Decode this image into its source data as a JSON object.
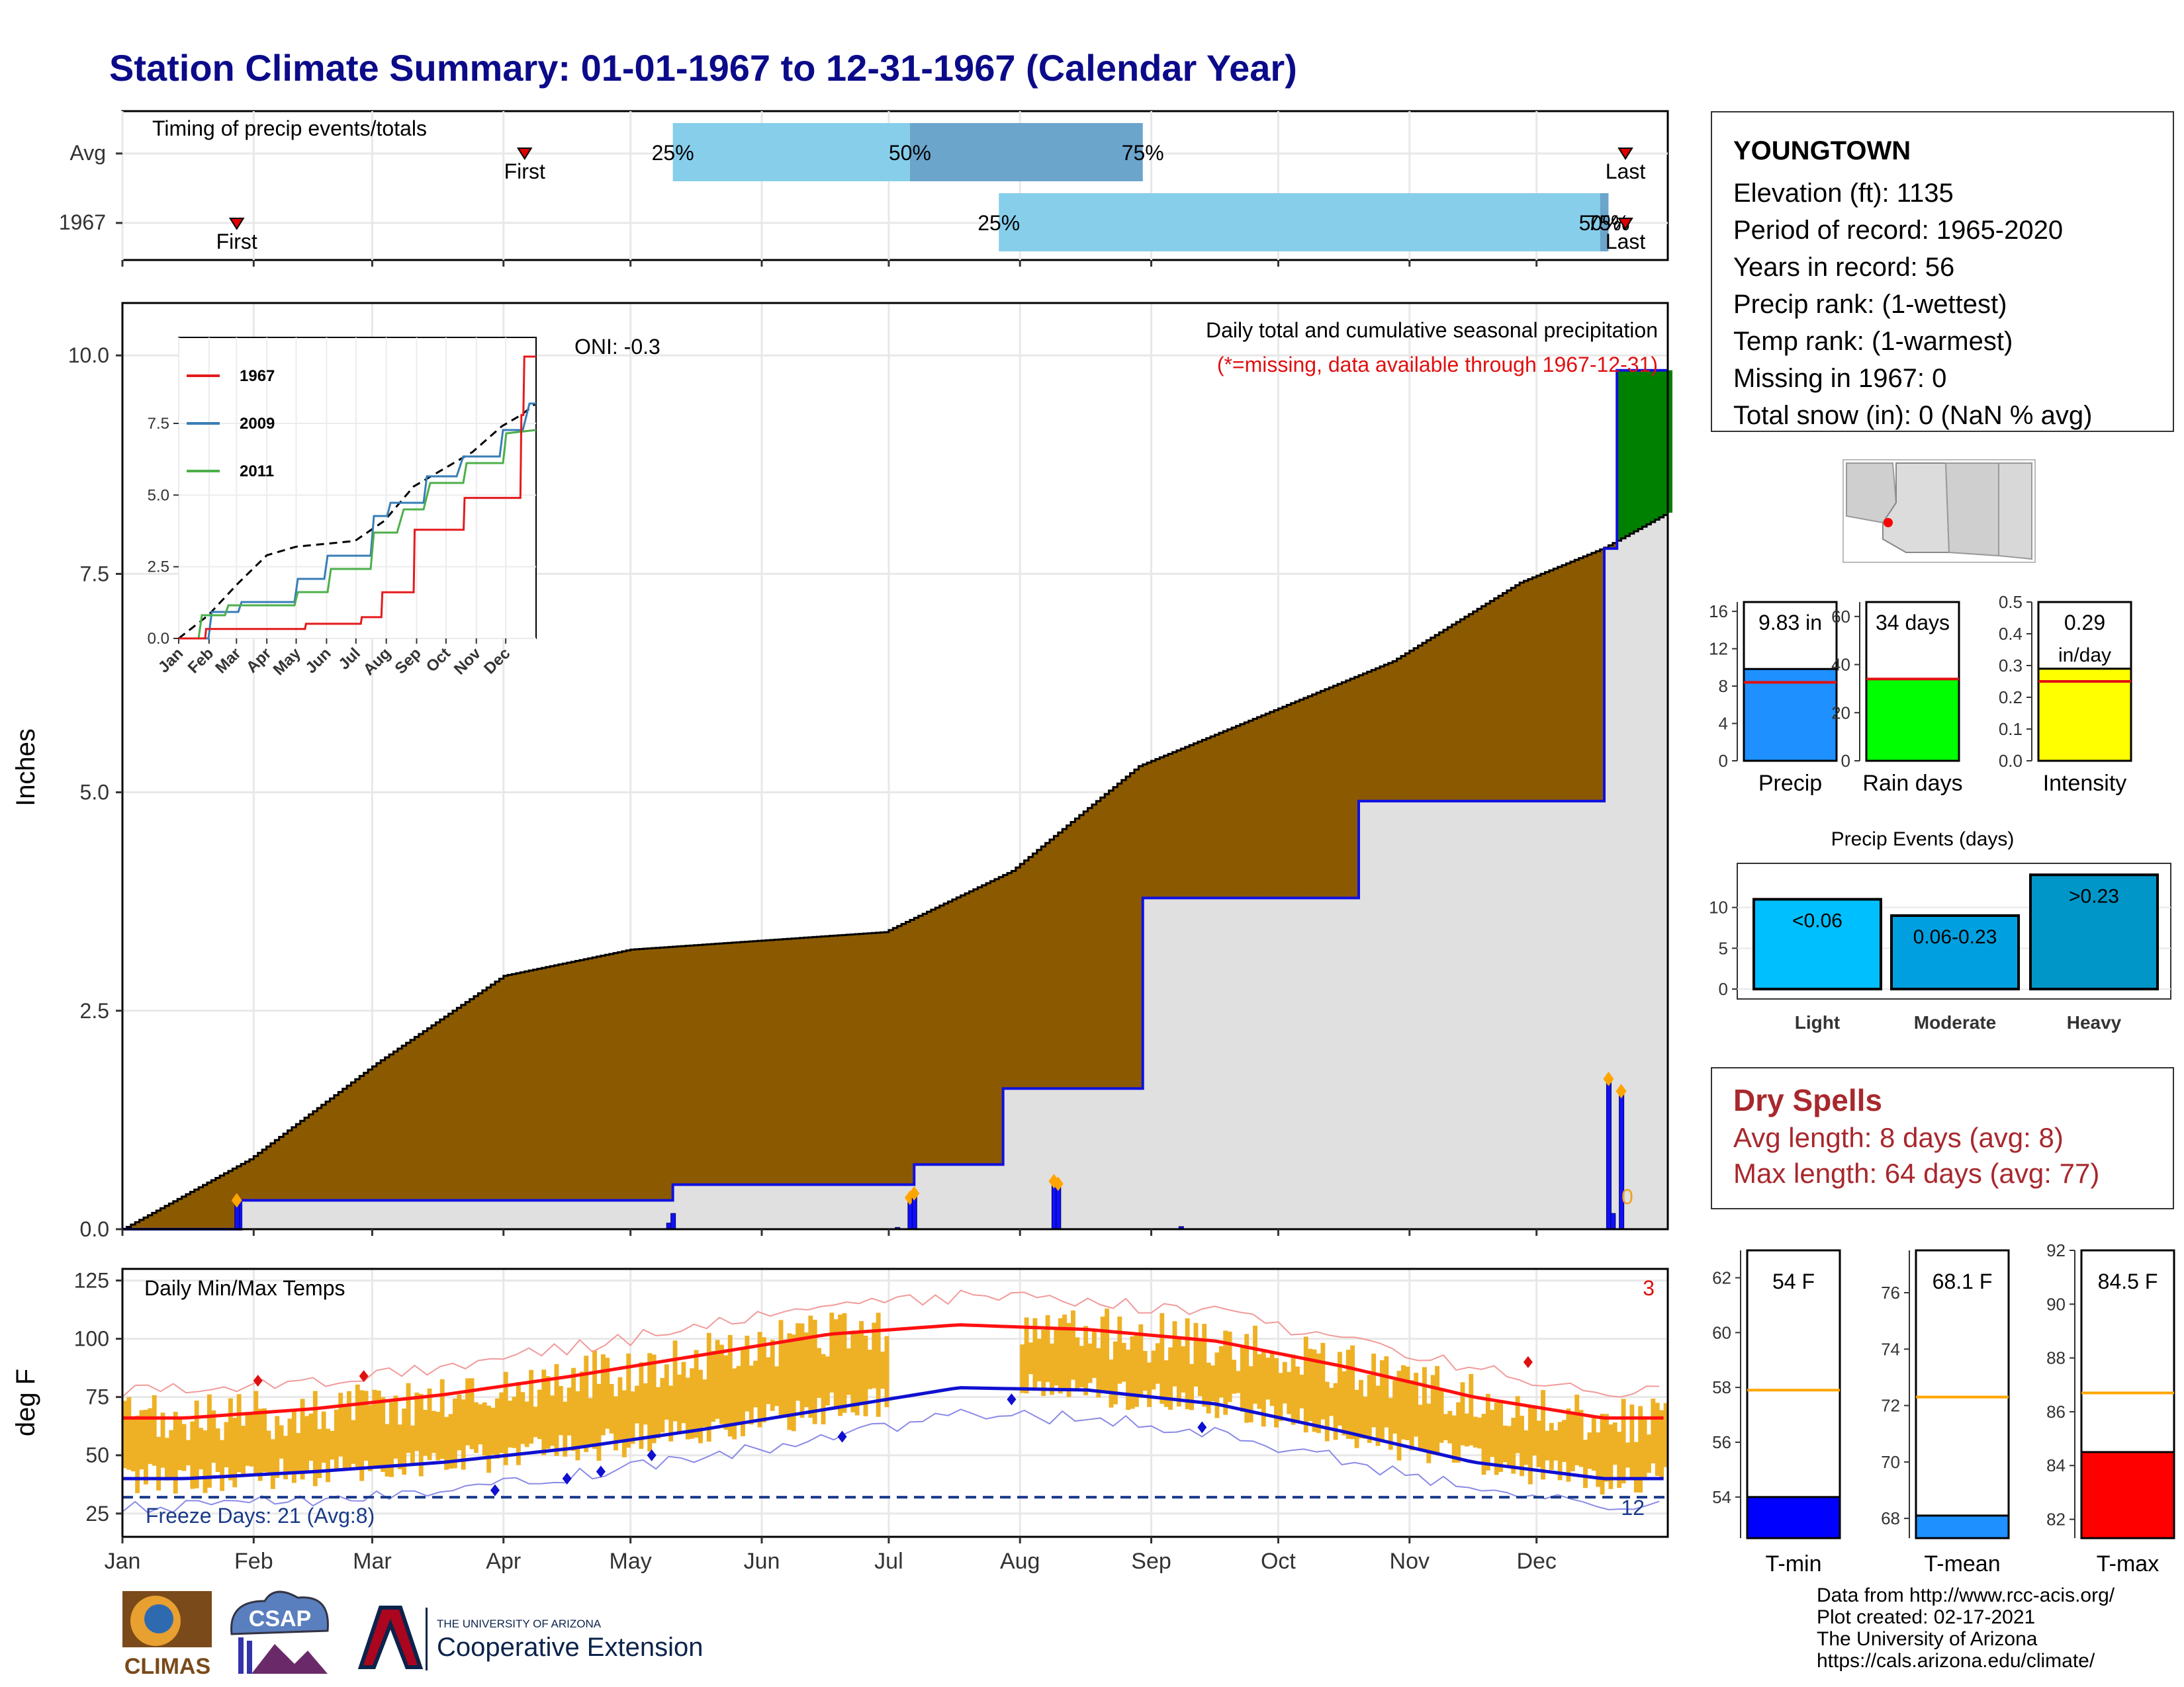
{
  "title": "Station Climate Summary: 01-01-1967 to 12-31-1967 (Calendar Year)",
  "timing_panel": {
    "title": "Timing of precip events/totals",
    "rows": [
      {
        "label": "Avg",
        "first": "First",
        "last": "Last",
        "p25": "25%",
        "p50": "50%",
        "p75": "75%",
        "first_day": 95,
        "p25_day": 130,
        "p50_day": 186,
        "p75_day": 241,
        "last_day": 355
      },
      {
        "label": "1967",
        "first": "First",
        "last": "Last",
        "p25": "25%",
        "p50": "50%",
        "p75": "75%",
        "first_day": 27,
        "p25_day": 207,
        "p50_day": 349,
        "p75_day": 351,
        "last_day": 355
      }
    ]
  },
  "precip_panel": {
    "ylabel": "Inches",
    "oni": "ONI: -0.3",
    "subtitle": "Daily total and cumulative seasonal precipitation",
    "missing_note": "(*=missing, data available through 1967-12-31)",
    "yticks": [
      "0.0",
      "2.5",
      "5.0",
      "7.5",
      "10.0"
    ],
    "label_zero": "0",
    "inset": {
      "legend": [
        "1967",
        "2009",
        "2011"
      ],
      "yticks": [
        "0.0",
        "2.5",
        "5.0",
        "7.5"
      ],
      "xticks": [
        "Jan",
        "Feb",
        "Mar",
        "Apr",
        "May",
        "Jun",
        "Jul",
        "Aug",
        "Sep",
        "Oct",
        "Nov",
        "Dec"
      ]
    }
  },
  "temp_panel": {
    "ylabel": "deg F",
    "title": "Daily Min/Max Temps",
    "record_count": "3",
    "freeze_days": "Freeze Days: 21 (Avg:8)",
    "freeze_count": "12",
    "yticks": [
      "25",
      "50",
      "75",
      "100",
      "125"
    ],
    "xticks": [
      "Jan",
      "Feb",
      "Mar",
      "Apr",
      "May",
      "Jun",
      "Jul",
      "Aug",
      "Sep",
      "Oct",
      "Nov",
      "Dec"
    ]
  },
  "station": {
    "name": "YOUNGTOWN",
    "elevation": "Elevation (ft): 1135",
    "period": "Period of record: 1965-2020",
    "years": "Years in record: 56",
    "precip_rank": "Precip rank:  (1-wettest)",
    "temp_rank": "Temp rank:  (1-warmest)",
    "missing": "Missing in 1967: 0",
    "snow": "Total snow (in): 0 (NaN % avg)"
  },
  "mini_bars": [
    {
      "name": "Precip",
      "label": "9.83 in",
      "value": 9.83,
      "avg": 8.4,
      "max": 17,
      "color": "#1e90ff",
      "yticks": [
        "0",
        "4",
        "8",
        "12",
        "16"
      ]
    },
    {
      "name": "Rain days",
      "label": "34 days",
      "value": 34,
      "avg": 34,
      "max": 66,
      "color": "#00ff00",
      "yticks": [
        "0",
        "20",
        "40",
        "60"
      ]
    },
    {
      "name": "Intensity",
      "label": "0.29",
      "label2": "in/day",
      "value": 0.29,
      "avg": 0.25,
      "max": 0.5,
      "color": "#ffff00",
      "yticks": [
        "0.0",
        "0.1",
        "0.2",
        "0.3",
        "0.4",
        "0.5"
      ]
    }
  ],
  "events_panel": {
    "title": "Precip Events (days)",
    "yticks": [
      "0",
      "5",
      "10"
    ],
    "bars": [
      {
        "name": "Light",
        "label": "<0.06",
        "value": 11,
        "color": "#00bfff"
      },
      {
        "name": "Moderate",
        "label": "0.06-0.23",
        "value": 9,
        "color": "#00a0e0"
      },
      {
        "name": "Heavy",
        "label": ">0.23",
        "value": 14,
        "color": "#0096c8"
      }
    ]
  },
  "dry_spells": {
    "title": "Dry Spells",
    "avg": "Avg length: 8 days (avg: 8)",
    "max": "Max length: 64 days (avg: 77)"
  },
  "temp_bars": [
    {
      "name": "T-min",
      "label": "54 F",
      "value": 54,
      "avg": 57.9,
      "min": 52.5,
      "max": 63,
      "color": "#0000ff",
      "yticks": [
        "54",
        "56",
        "58",
        "60",
        "62"
      ]
    },
    {
      "name": "T-mean",
      "label": "68.1 F",
      "value": 68.1,
      "avg": 72.3,
      "min": 67.3,
      "max": 77.5,
      "color": "#1e90ff",
      "yticks": [
        "68",
        "70",
        "72",
        "74",
        "76"
      ]
    },
    {
      "name": "T-max",
      "label": "84.5 F",
      "value": 84.5,
      "avg": 86.7,
      "min": 81.3,
      "max": 92,
      "color": "#ff0000",
      "yticks": [
        "82",
        "84",
        "86",
        "88",
        "90",
        "92"
      ]
    }
  ],
  "footer": {
    "line1": "Data from http://www.rcc-acis.org/",
    "line2": "Plot created: 02-17-2021",
    "line3": "The University of Arizona",
    "line4": "https://cals.arizona.edu/climate/"
  },
  "logos": {
    "climas": "CLIMAS",
    "csap": "CSAP",
    "ua_small": "THE UNIVERSITY OF ARIZONA",
    "ua_big": "Cooperative Extension"
  },
  "chart_data": {
    "type": "area",
    "precip_cumulative_1967": {
      "x_day": [
        0,
        27,
        28,
        129,
        130,
        186,
        187,
        207,
        208,
        240,
        241,
        291,
        292,
        349,
        350,
        352,
        353,
        365
      ],
      "y_in": [
        0,
        0,
        0.33,
        0.33,
        0.51,
        0.51,
        0.74,
        0.74,
        1.61,
        1.61,
        3.79,
        3.79,
        4.9,
        4.9,
        7.79,
        7.79,
        9.83,
        9.83
      ]
    },
    "precip_average_cumulative": {
      "x_day": [
        0,
        30,
        60,
        90,
        120,
        150,
        180,
        210,
        240,
        270,
        300,
        330,
        350,
        365
      ],
      "y_in": [
        0,
        0.8,
        1.9,
        2.9,
        3.2,
        3.3,
        3.4,
        4.1,
        5.3,
        5.9,
        6.5,
        7.4,
        7.8,
        8.2
      ]
    },
    "precip_daily_1967": {
      "x_day": [
        27,
        129,
        130,
        183,
        186,
        187,
        220,
        221,
        250,
        351,
        352,
        354
      ],
      "y_in": [
        0.33,
        0.07,
        0.18,
        0.02,
        0.36,
        0.41,
        0.55,
        0.52,
        0.03,
        1.72,
        0.18,
        1.58
      ]
    },
    "temp_normal_max_monthly": {
      "months": [
        "Jan",
        "Feb",
        "Mar",
        "Apr",
        "May",
        "Jun",
        "Jul",
        "Aug",
        "Sep",
        "Oct",
        "Nov",
        "Dec"
      ],
      "values": [
        66,
        70,
        76,
        84,
        93,
        102,
        106,
        104,
        99,
        88,
        75,
        66
      ]
    },
    "temp_normal_min_monthly": {
      "months": [
        "Jan",
        "Feb",
        "Mar",
        "Apr",
        "May",
        "Jun",
        "Jul",
        "Aug",
        "Sep",
        "Oct",
        "Nov",
        "Dec"
      ],
      "values": [
        40,
        43,
        47,
        53,
        61,
        70,
        79,
        78,
        72,
        60,
        47,
        40
      ]
    },
    "inset_series": [
      {
        "name": "1967",
        "color": "#e41a1c"
      },
      {
        "name": "2009",
        "color": "#377eb8"
      },
      {
        "name": "2011",
        "color": "#4daf4a"
      }
    ]
  }
}
